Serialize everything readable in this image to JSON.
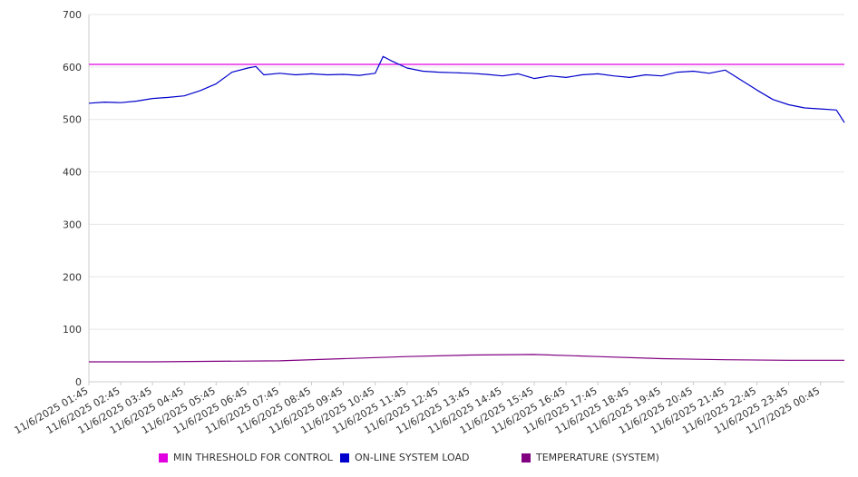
{
  "chart_data": {
    "type": "line",
    "ylim": [
      0,
      700
    ],
    "yticks": [
      0,
      100,
      200,
      300,
      400,
      500,
      600,
      700
    ],
    "x_tick_labels": [
      "11/6/2025 01:45",
      "11/6/2025 02:45",
      "11/6/2025 03:45",
      "11/6/2025 04:45",
      "11/6/2025 05:45",
      "11/6/2025 06:45",
      "11/6/2025 07:45",
      "11/6/2025 08:45",
      "11/6/2025 09:45",
      "11/6/2025 10:45",
      "11/6/2025 11:45",
      "11/6/2025 12:45",
      "11/6/2025 13:45",
      "11/6/2025 14:45",
      "11/6/2025 15:45",
      "11/6/2025 16:45",
      "11/6/2025 17:45",
      "11/6/2025 18:45",
      "11/6/2025 19:45",
      "11/6/2025 20:45",
      "11/6/2025 21:45",
      "11/6/2025 22:45",
      "11/6/2025 23:45",
      "11/7/2025 00:45"
    ],
    "x_range": [
      "11/6/2025 01:45",
      "11/7/2025 01:30"
    ],
    "grid": true,
    "legend_position": "bottom",
    "series": [
      {
        "name": "MIN THRESHOLD FOR CONTROL",
        "color": "#e000e0",
        "x": [
          "11/6/2025 01:45",
          "11/7/2025 01:30"
        ],
        "values": [
          605,
          605
        ]
      },
      {
        "name": "ON-LINE SYSTEM LOAD",
        "color": "#0000cc",
        "x": [
          "11/6/2025 01:45",
          "11/6/2025 02:15",
          "11/6/2025 02:45",
          "11/6/2025 03:15",
          "11/6/2025 03:45",
          "11/6/2025 04:15",
          "11/6/2025 04:45",
          "11/6/2025 05:15",
          "11/6/2025 05:45",
          "11/6/2025 06:15",
          "11/6/2025 06:45",
          "11/6/2025 07:00",
          "11/6/2025 07:15",
          "11/6/2025 07:45",
          "11/6/2025 08:15",
          "11/6/2025 08:45",
          "11/6/2025 09:15",
          "11/6/2025 09:45",
          "11/6/2025 10:15",
          "11/6/2025 10:45",
          "11/6/2025 11:00",
          "11/6/2025 11:15",
          "11/6/2025 11:45",
          "11/6/2025 12:15",
          "11/6/2025 12:45",
          "11/6/2025 13:15",
          "11/6/2025 13:45",
          "11/6/2025 14:15",
          "11/6/2025 14:45",
          "11/6/2025 15:15",
          "11/6/2025 15:45",
          "11/6/2025 16:15",
          "11/6/2025 16:45",
          "11/6/2025 17:15",
          "11/6/2025 17:45",
          "11/6/2025 18:15",
          "11/6/2025 18:45",
          "11/6/2025 19:15",
          "11/6/2025 19:45",
          "11/6/2025 20:15",
          "11/6/2025 20:45",
          "11/6/2025 21:15",
          "11/6/2025 21:45",
          "11/6/2025 22:15",
          "11/6/2025 22:45",
          "11/6/2025 23:15",
          "11/6/2025 23:45",
          "11/7/2025 00:15",
          "11/7/2025 00:45",
          "11/7/2025 01:15",
          "11/7/2025 01:30"
        ],
        "values": [
          531,
          533,
          532,
          535,
          540,
          542,
          545,
          555,
          568,
          590,
          598,
          601,
          585,
          588,
          585,
          587,
          585,
          586,
          584,
          588,
          620,
          612,
          598,
          592,
          590,
          589,
          588,
          586,
          583,
          587,
          578,
          583,
          580,
          585,
          587,
          583,
          580,
          585,
          583,
          590,
          592,
          588,
          594,
          575,
          556,
          538,
          528,
          522,
          520,
          518,
          494
        ]
      },
      {
        "name": "TEMPERATURE (SYSTEM)",
        "color": "#800080",
        "x": [
          "11/6/2025 01:45",
          "11/6/2025 03:45",
          "11/6/2025 05:45",
          "11/6/2025 07:45",
          "11/6/2025 09:45",
          "11/6/2025 11:45",
          "11/6/2025 13:45",
          "11/6/2025 15:45",
          "11/6/2025 17:45",
          "11/6/2025 19:45",
          "11/6/2025 21:45",
          "11/6/2025 23:45",
          "11/7/2025 01:30"
        ],
        "values": [
          38,
          38,
          39,
          40,
          44,
          48,
          51,
          52,
          48,
          44,
          42,
          41,
          41
        ]
      }
    ]
  }
}
